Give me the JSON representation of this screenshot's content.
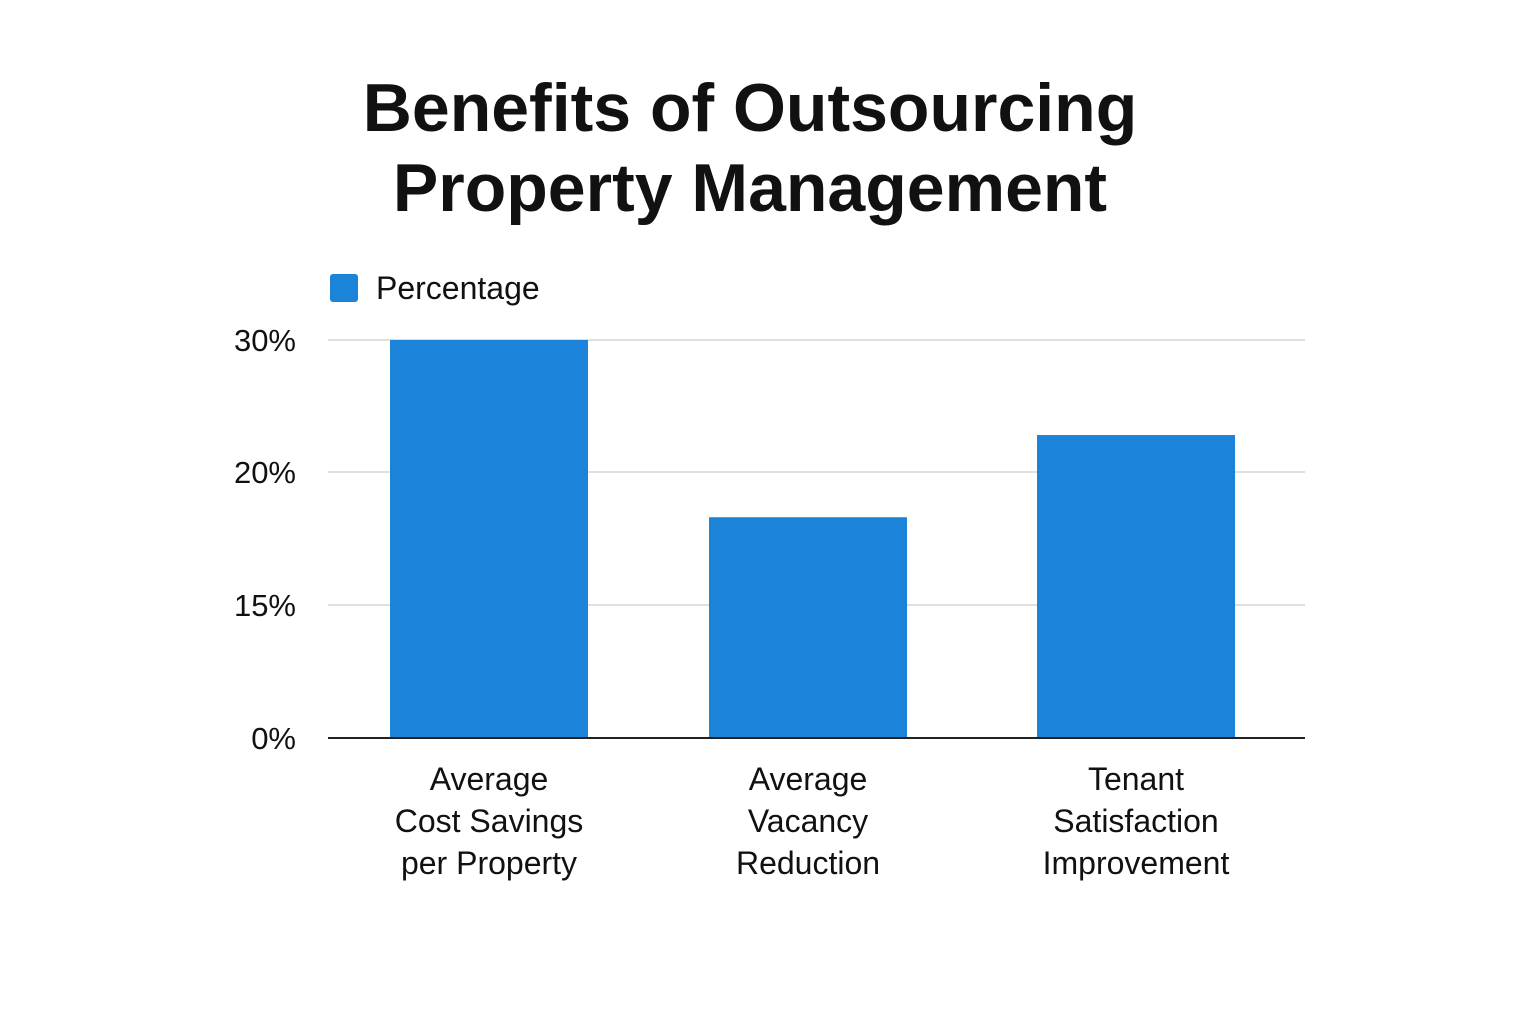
{
  "chart_data": {
    "type": "bar",
    "title": "Benefits of Outsourcing Property Management",
    "title_lines": [
      "Benefits of Outsourcing",
      "Property Management"
    ],
    "xlabel": "",
    "ylabel": "",
    "categories": [
      [
        "Average",
        "Cost Savings",
        "per Property"
      ],
      [
        "Average",
        "Vacancy",
        "Reduction"
      ],
      [
        "Tenant",
        "Satisfaction",
        "Improvement"
      ]
    ],
    "series": [
      {
        "name": "Percentage",
        "color": "#1c84d8",
        "values": [
          30,
          18.3,
          22.8
        ]
      }
    ],
    "y_ticks": [
      "30%",
      "20%",
      "15%",
      "0%"
    ],
    "y_tick_values": [
      30,
      20,
      15,
      0
    ],
    "grid": true,
    "legend": "top-left"
  }
}
